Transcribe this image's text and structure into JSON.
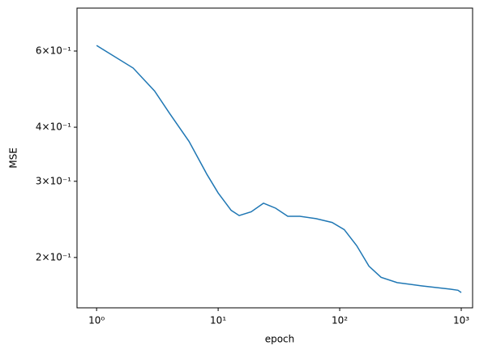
{
  "chart_data": {
    "type": "line",
    "xlabel": "epoch",
    "ylabel": "MSE",
    "x": [
      1,
      2,
      3,
      4,
      5.76,
      8.1,
      10,
      12.8,
      14.9,
      18.7,
      23.6,
      29.7,
      37.4,
      47,
      63.8,
      86.6,
      109,
      138,
      174,
      219,
      297,
      470,
      806,
      940,
      1000
    ],
    "series": [
      {
        "name": "MSE",
        "color": "#1f77b4",
        "values": [
          0.618,
          0.548,
          0.485,
          0.43,
          0.371,
          0.311,
          0.282,
          0.257,
          0.25,
          0.255,
          0.267,
          0.26,
          0.249,
          0.249,
          0.246,
          0.241,
          0.232,
          0.213,
          0.191,
          0.18,
          0.175,
          0.172,
          0.169,
          0.168,
          0.166
        ]
      }
    ],
    "xscale": "log",
    "yscale": "log",
    "xlim": [
      0.69,
      1240
    ],
    "ylim": [
      0.153,
      0.754
    ],
    "xticks": [
      {
        "value": 1,
        "label": "10⁰"
      },
      {
        "value": 10,
        "label": "10¹"
      },
      {
        "value": 100,
        "label": "10²"
      },
      {
        "value": 1000,
        "label": "10³"
      }
    ],
    "yticks": [
      {
        "value": 0.2,
        "label": "2×10⁻¹"
      },
      {
        "value": 0.3,
        "label": "3×10⁻¹"
      },
      {
        "value": 0.4,
        "label": "4×10⁻¹"
      },
      {
        "value": 0.6,
        "label": "6×10⁻¹"
      }
    ],
    "grid": false
  }
}
